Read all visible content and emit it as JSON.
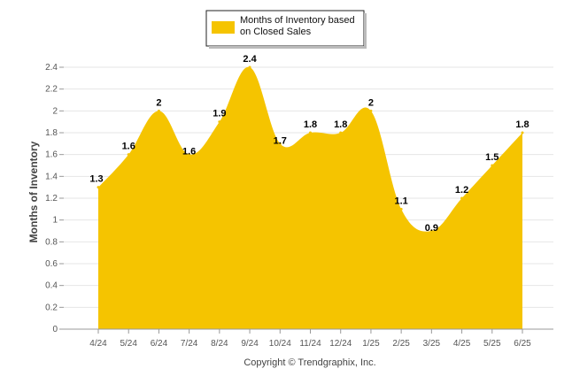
{
  "chart_data": {
    "type": "area",
    "categories": [
      "4/24",
      "5/24",
      "6/24",
      "7/24",
      "8/24",
      "9/24",
      "10/24",
      "11/24",
      "12/24",
      "1/25",
      "2/25",
      "3/25",
      "4/25",
      "5/25",
      "6/25"
    ],
    "series": [
      {
        "name": "Months of Inventory based on Closed Sales",
        "values": [
          1.3,
          1.6,
          2,
          1.6,
          1.9,
          2.4,
          1.7,
          1.8,
          1.8,
          2,
          1.1,
          0.9,
          1.2,
          1.5,
          1.8
        ],
        "labels": [
          "1.3",
          "1.6",
          "2",
          "1.6",
          "1.9",
          "2.4",
          "1.7",
          "1.8",
          "1.8",
          "2",
          "1.1",
          "0.9",
          "1.2",
          "1.5",
          "1.8"
        ],
        "color": "#F5C400"
      }
    ],
    "ylabel": "Months of Inventory",
    "xlabel": "",
    "ylim": [
      0,
      2.4
    ],
    "yticks": [
      "0",
      "0.2",
      "0.4",
      "0.6",
      "0.8",
      "1",
      "1.2",
      "1.4",
      "1.6",
      "1.8",
      "2",
      "2.2",
      "2.4"
    ],
    "grid": true,
    "legend_position": "top-center"
  },
  "legend": {
    "line1": "Months of Inventory based",
    "line2": "on Closed Sales"
  },
  "footer": {
    "copyright": "Copyright © Trendgraphix, Inc."
  }
}
